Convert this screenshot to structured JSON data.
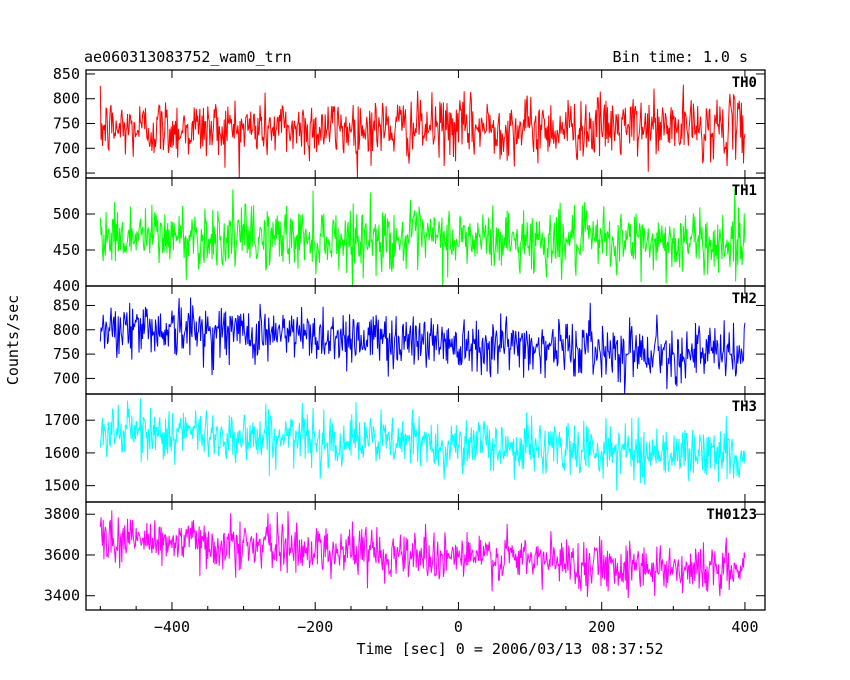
{
  "chart_data": {
    "type": "line",
    "title_left": "ae060313083752_wam0_trn",
    "title_right": "Bin time: 1.0 s",
    "xlabel": "Time [sec] 0 = 2006/03/13 08:37:52",
    "ylabel": "Counts/sec",
    "xlim": [
      -520,
      428
    ],
    "x_ticks": [
      -400,
      -200,
      0,
      200,
      400
    ],
    "x_tick_labels": [
      "−400",
      "−200",
      "0",
      "200",
      "400"
    ],
    "x_start": -500,
    "x_end": 400,
    "bin_time": 1.0,
    "grid": false,
    "legend": "none",
    "panels": [
      {
        "name": "TH0",
        "color": "#ff0000",
        "ylim": [
          640,
          858
        ],
        "y_ticks": [
          650,
          700,
          750,
          800,
          850
        ],
        "mean_start": 740,
        "mean_end": 742,
        "noise_sd": 31
      },
      {
        "name": "TH1",
        "color": "#00ff00",
        "ylim": [
          400,
          550
        ],
        "y_ticks": [
          400,
          450,
          500
        ],
        "mean_start": 470,
        "mean_end": 460,
        "noise_sd": 22
      },
      {
        "name": "TH2",
        "color": "#0000ff",
        "ylim": [
          668,
          890
        ],
        "y_ticks": [
          700,
          750,
          800,
          850
        ],
        "mean_start": 808,
        "mean_end": 748,
        "noise_sd": 29
      },
      {
        "name": "TH3",
        "color": "#00ffff",
        "ylim": [
          1450,
          1780
        ],
        "y_ticks": [
          1500,
          1600,
          1700
        ],
        "mean_start": 1668,
        "mean_end": 1592,
        "noise_sd": 41
      },
      {
        "name": "TH0123",
        "color": "#ff00ff",
        "ylim": [
          3330,
          3860
        ],
        "y_ticks": [
          3400,
          3600,
          3800
        ],
        "mean_start": 3685,
        "mean_end": 3520,
        "noise_sd": 62
      }
    ]
  }
}
